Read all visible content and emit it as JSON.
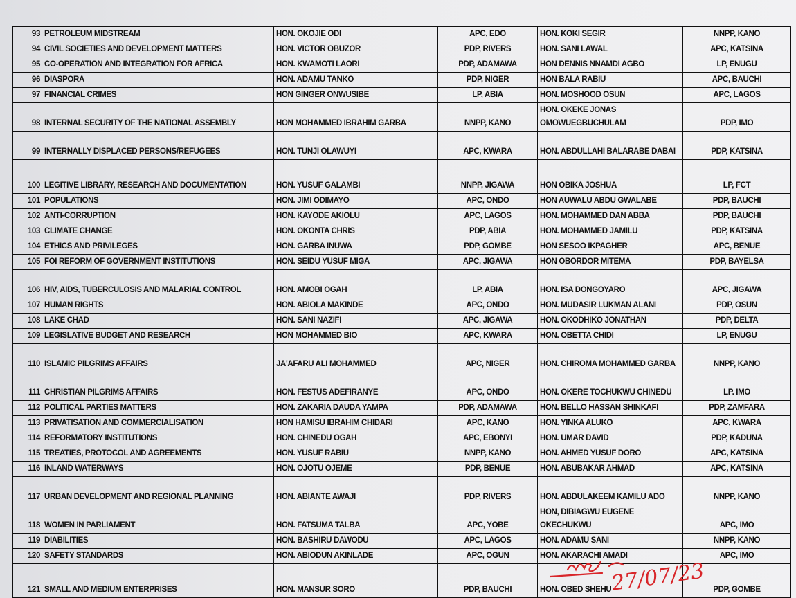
{
  "rows": [
    {
      "no": "93",
      "committee": "PETROLEUM MIDSTREAM",
      "chairman": "HON. OKOJIE ODI",
      "chairman_party": "APC, EDO",
      "deputy": "HON. KOKI SEGIR",
      "deputy_party": "NNPP, KANO"
    },
    {
      "no": "94",
      "committee": "CIVIL SOCIETIES AND DEVELOPMENT MATTERS",
      "chairman": "HON. VICTOR OBUZOR",
      "chairman_party": "PDP, RIVERS",
      "deputy": "HON. SANI LAWAL",
      "deputy_party": "APC, KATSINA"
    },
    {
      "no": "95",
      "committee": "CO-OPERATION AND INTEGRATION FOR AFRICA",
      "chairman": "HON. KWAMOTI LAORI",
      "chairman_party": "PDP, ADAMAWA",
      "deputy": "HON DENNIS NNAMDI AGBO",
      "deputy_party": "LP, ENUGU"
    },
    {
      "no": "96",
      "committee": "DIASPORA",
      "chairman": "HON. ADAMU TANKO",
      "chairman_party": "PDP, NIGER",
      "deputy": "HON BALA RABIU",
      "deputy_party": "APC, BAUCHI"
    },
    {
      "no": "97",
      "committee": "FINANCIAL CRIMES",
      "chairman": "HON GINGER ONWUSIBE",
      "chairman_party": "LP, ABIA",
      "deputy": "HON. MOSHOOD OSUN",
      "deputy_party": "APC, LAGOS"
    },
    {
      "no": "98",
      "committee": "INTERNAL SECURITY OF THE NATIONAL ASSEMBLY",
      "chairman": "HON MOHAMMED IBRAHIM GARBA",
      "chairman_party": "NNPP, KANO",
      "deputy": "HON. OKEKE JONAS OMOWUEGBUCHULAM",
      "deputy_party": "PDP, IMO"
    },
    {
      "no": "99",
      "committee": "INTERNALLY DISPLACED PERSONS/REFUGEES",
      "chairman": "HON. TUNJI OLAWUYI",
      "chairman_party": "APC, KWARA",
      "deputy": "HON. ABDULLAHI BALARABE DABAI",
      "deputy_party": "PDP, KATSINA"
    },
    {
      "no": "100",
      "committee": "LEGITIVE LIBRARY, RESEARCH AND DOCUMENTATION",
      "chairman": "HON. YUSUF GALAMBI",
      "chairman_party": "NNPP, JIGAWA",
      "deputy": "HON OBIKA JOSHUA",
      "deputy_party": "LP, FCT"
    },
    {
      "no": "101",
      "committee": "POPULATIONS",
      "chairman": "HON. JIMI ODIMAYO",
      "chairman_party": "APC, ONDO",
      "deputy": "HON AUWALU ABDU GWALABE",
      "deputy_party": "PDP, BAUCHI"
    },
    {
      "no": "102",
      "committee": "ANTI-CORRUPTION",
      "chairman": "HON. KAYODE AKIOLU",
      "chairman_party": "APC, LAGOS",
      "deputy": "HON. MOHAMMED DAN ABBA",
      "deputy_party": "PDP, BAUCHI"
    },
    {
      "no": "103",
      "committee": "CLIMATE CHANGE",
      "chairman": "HON. OKONTA CHRIS",
      "chairman_party": "PDP, ABIA",
      "deputy": "HON. MOHAMMED JAMILU",
      "deputy_party": "PDP, KATSINA"
    },
    {
      "no": "104",
      "committee": "ETHICS AND PRIVILEGES",
      "chairman": "HON. GARBA INUWA",
      "chairman_party": "PDP, GOMBE",
      "deputy": "HON SESOO IKPAGHER",
      "deputy_party": "APC, BENUE"
    },
    {
      "no": "105",
      "committee": "FOI REFORM OF GOVERNMENT INSTITUTIONS",
      "chairman": "HON. SEIDU YUSUF MIGA",
      "chairman_party": "APC, JIGAWA",
      "deputy": "HON OBORDOR MITEMA",
      "deputy_party": "PDP, BAYELSA"
    },
    {
      "no": "106",
      "committee": "HIV, AIDS, TUBERCULOSIS AND MALARIAL CONTROL",
      "chairman": "HON. AMOBI OGAH",
      "chairman_party": "LP, ABIA",
      "deputy": "HON. ISA DONGOYARO",
      "deputy_party": "APC, JIGAWA"
    },
    {
      "no": "107",
      "committee": "HUMAN RIGHTS",
      "chairman": "HON. ABIOLA MAKINDE",
      "chairman_party": "APC, ONDO",
      "deputy": "HON. MUDASIR LUKMAN ALANI",
      "deputy_party": "PDP, OSUN"
    },
    {
      "no": "108",
      "committee": "LAKE CHAD",
      "chairman": "HON. SANI NAZIFI",
      "chairman_party": "APC, JIGAWA",
      "deputy": "HON. OKODHIKO JONATHAN",
      "deputy_party": "PDP, DELTA"
    },
    {
      "no": "109",
      "committee": "LEGISLATIVE BUDGET AND RESEARCH",
      "chairman": "HON MOHAMMED BIO",
      "chairman_party": "APC, KWARA",
      "deputy": "HON. OBETTA CHIDI",
      "deputy_party": "LP, ENUGU"
    },
    {
      "no": "110",
      "committee": "ISLAMIC PILGRIMS AFFAIRS",
      "chairman": "JA'AFARU ALI MOHAMMED",
      "chairman_party": "APC, NIGER",
      "deputy": "HON. CHIROMA MOHAMMED GARBA",
      "deputy_party": "NNPP, KANO"
    },
    {
      "no": "111",
      "committee": "CHRISTIAN PILGRIMS AFFAIRS",
      "chairman": "HON. FESTUS ADEFIRANYE",
      "chairman_party": "APC, ONDO",
      "deputy": "HON. OKERE TOCHUKWU CHINEDU",
      "deputy_party": "LP. IMO"
    },
    {
      "no": "112",
      "committee": "POLITICAL PARTIES MATTERS",
      "chairman": "HON. ZAKARIA DAUDA YAMPA",
      "chairman_party": "PDP, ADAMAWA",
      "deputy": "HON. BELLO HASSAN SHINKAFI",
      "deputy_party": "PDP, ZAMFARA"
    },
    {
      "no": "113",
      "committee": "PRIVATISATION AND COMMERCIALISATION",
      "chairman": "HON HAMISU IBRAHIM CHIDARI",
      "chairman_party": "APC, KANO",
      "deputy": "HON. YINKA ALUKO",
      "deputy_party": "APC, KWARA"
    },
    {
      "no": "114",
      "committee": "REFORMATORY INSTITUTIONS",
      "chairman": "HON. CHINEDU OGAH",
      "chairman_party": "APC, EBONYI",
      "deputy": "HON. UMAR DAVID",
      "deputy_party": "PDP, KADUNA"
    },
    {
      "no": "115",
      "committee": "TREATIES, PROTOCOL AND AGREEMENTS",
      "chairman": "HON. YUSUF RABIU",
      "chairman_party": "NNPP, KANO",
      "deputy": "HON. AHMED YUSUF DORO",
      "deputy_party": "APC, KATSINA"
    },
    {
      "no": "116",
      "committee": "INLAND WATERWAYS",
      "chairman": "HON. OJOTU OJEME",
      "chairman_party": "PDP, BENUE",
      "deputy": "HON. ABUBAKAR AHMAD",
      "deputy_party": "APC, KATSINA"
    },
    {
      "no": "117",
      "committee": "URBAN DEVELOPMENT AND REGIONAL PLANNING",
      "chairman": "HON. ABIANTE AWAJI",
      "chairman_party": "PDP, RIVERS",
      "deputy": "HON. ABDULAKEEM KAMILU ADO",
      "deputy_party": "NNPP, KANO"
    },
    {
      "no": "118",
      "committee": "WOMEN IN PARLIAMENT",
      "chairman": "HON. FATSUMA TALBA",
      "chairman_party": "APC, YOBE",
      "deputy": "HON, DIBIAGWU EUGENE OKECHUKWU",
      "deputy_party": "APC, IMO"
    },
    {
      "no": "119",
      "committee": "DIABILITIES",
      "chairman": "HON. BASHIRU DAWODU",
      "chairman_party": "APC, LAGOS",
      "deputy": "HON. ADAMU SANI",
      "deputy_party": "NNPP, KANO"
    },
    {
      "no": "120",
      "committee": "SAFETY STANDARDS",
      "chairman": "HON. ABIODUN AKINLADE",
      "chairman_party": "APC, OGUN",
      "deputy": "HON. AKARACHI AMADI",
      "deputy_party": "APC, IMO"
    },
    {
      "no": "121",
      "committee": "SMALL AND MEDIUM ENTERPRISES",
      "chairman": "HON. MANSUR SORO",
      "chairman_party": "PDP, BAUCHI",
      "deputy": "HON. OBED SHEHU",
      "deputy_party": "PDP, GOMBE"
    }
  ],
  "signature": {
    "date": "27/07/23",
    "ink_color": "#d8262a"
  }
}
